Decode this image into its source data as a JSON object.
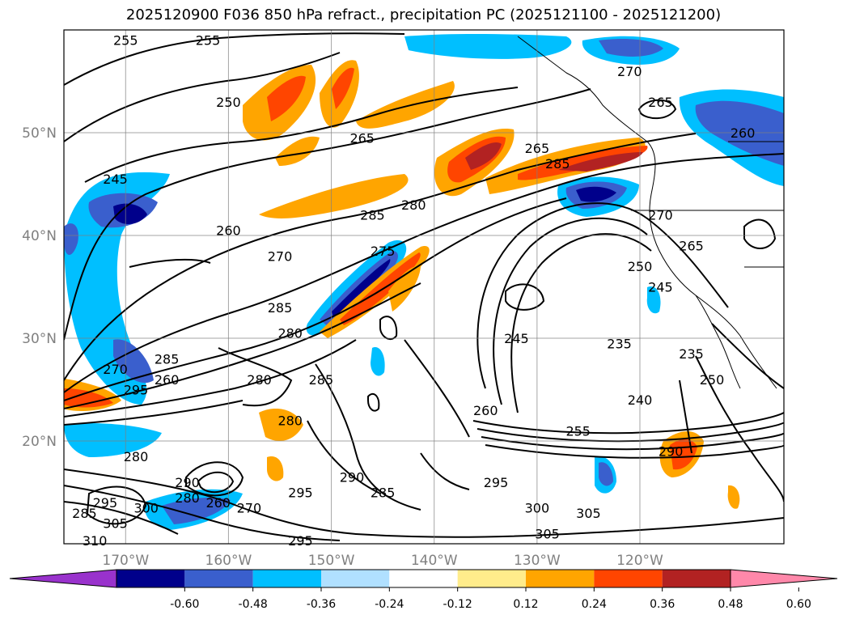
{
  "chart_data": {
    "type": "map",
    "title": "2025120900 F036 850 hPa refract., precipitation PC (2025121100 - 2025121200)",
    "x_axis": {
      "ticks": [
        {
          "lon": -170,
          "label": "170°W"
        },
        {
          "lon": -160,
          "label": "160°W"
        },
        {
          "lon": -150,
          "label": "150°W"
        },
        {
          "lon": -140,
          "label": "140°W"
        },
        {
          "lon": -130,
          "label": "130°W"
        },
        {
          "lon": -120,
          "label": "120°W"
        }
      ]
    },
    "y_axis": {
      "ticks": [
        {
          "lat": 50,
          "label": "50°N"
        },
        {
          "lat": 40,
          "label": "40°N"
        },
        {
          "lat": 30,
          "label": "30°N"
        },
        {
          "lat": 20,
          "label": "20°N"
        }
      ]
    },
    "extent": {
      "lon": [
        -176,
        -106
      ],
      "lat": [
        10,
        60
      ]
    },
    "colorbar": {
      "levels": [
        "-0.60",
        "-0.48",
        "-0.36",
        "-0.24",
        "-0.12",
        "0.12",
        "0.24",
        "0.36",
        "0.48",
        "0.60"
      ],
      "colors": [
        "#9932cc",
        "#00008b",
        "#3a5fcd",
        "#00bfff",
        "#b0e0ff",
        "#ffffff",
        "#ffec8b",
        "#ffa500",
        "#ff4500",
        "#b22222",
        "#ff88aa"
      ],
      "extend": "both"
    },
    "contour_labels": [
      {
        "text": "255",
        "lon": -170,
        "lat": 59
      },
      {
        "text": "255",
        "lon": -162,
        "lat": 59
      },
      {
        "text": "250",
        "lon": -160,
        "lat": 53
      },
      {
        "text": "265",
        "lon": -147,
        "lat": 49.5
      },
      {
        "text": "245",
        "lon": -171,
        "lat": 45.5
      },
      {
        "text": "260",
        "lon": -160,
        "lat": 40.5
      },
      {
        "text": "270",
        "lon": -155,
        "lat": 38
      },
      {
        "text": "285",
        "lon": -146,
        "lat": 42
      },
      {
        "text": "280",
        "lon": -142,
        "lat": 43
      },
      {
        "text": "275",
        "lon": -145,
        "lat": 38.5
      },
      {
        "text": "285",
        "lon": -155,
        "lat": 33
      },
      {
        "text": "280",
        "lon": -154,
        "lat": 30.5
      },
      {
        "text": "285",
        "lon": -151,
        "lat": 26
      },
      {
        "text": "280",
        "lon": -157,
        "lat": 26
      },
      {
        "text": "280",
        "lon": -154,
        "lat": 22
      },
      {
        "text": "265",
        "lon": -130,
        "lat": 48.5
      },
      {
        "text": "285",
        "lon": -128,
        "lat": 47
      },
      {
        "text": "270",
        "lon": -121,
        "lat": 56
      },
      {
        "text": "265",
        "lon": -118,
        "lat": 53
      },
      {
        "text": "260",
        "lon": -110,
        "lat": 50
      },
      {
        "text": "270",
        "lon": -118,
        "lat": 42
      },
      {
        "text": "265",
        "lon": -115,
        "lat": 39
      },
      {
        "text": "250",
        "lon": -120,
        "lat": 37
      },
      {
        "text": "245",
        "lon": -118,
        "lat": 35
      },
      {
        "text": "245",
        "lon": -132,
        "lat": 30
      },
      {
        "text": "235",
        "lon": -122,
        "lat": 29.5
      },
      {
        "text": "235",
        "lon": -115,
        "lat": 28.5
      },
      {
        "text": "250",
        "lon": -113,
        "lat": 26
      },
      {
        "text": "240",
        "lon": -120,
        "lat": 24
      },
      {
        "text": "260",
        "lon": -135,
        "lat": 23
      },
      {
        "text": "255",
        "lon": -126,
        "lat": 21
      },
      {
        "text": "290",
        "lon": -117,
        "lat": 19
      },
      {
        "text": "295",
        "lon": -134,
        "lat": 16
      },
      {
        "text": "300",
        "lon": -130,
        "lat": 13.5
      },
      {
        "text": "305",
        "lon": -125,
        "lat": 13
      },
      {
        "text": "305",
        "lon": -129,
        "lat": 11
      },
      {
        "text": "285",
        "lon": -145,
        "lat": 15
      },
      {
        "text": "290",
        "lon": -148,
        "lat": 16.5
      },
      {
        "text": "295",
        "lon": -153,
        "lat": 15
      },
      {
        "text": "295",
        "lon": -153,
        "lat": 10.3
      },
      {
        "text": "270",
        "lon": -171,
        "lat": 27
      },
      {
        "text": "260",
        "lon": -166,
        "lat": 26
      },
      {
        "text": "295",
        "lon": -169,
        "lat": 25
      },
      {
        "text": "285",
        "lon": -166,
        "lat": 28
      },
      {
        "text": "280",
        "lon": -169,
        "lat": 18.5
      },
      {
        "text": "290",
        "lon": -164,
        "lat": 16
      },
      {
        "text": "280",
        "lon": -164,
        "lat": 14.5
      },
      {
        "text": "260",
        "lon": -161,
        "lat": 14
      },
      {
        "text": "270",
        "lon": -158,
        "lat": 13.5
      },
      {
        "text": "300",
        "lon": -168,
        "lat": 13.5
      },
      {
        "text": "305",
        "lon": -171,
        "lat": 12
      },
      {
        "text": "310",
        "lon": -173,
        "lat": 10.3
      },
      {
        "text": "285",
        "lon": -174,
        "lat": 13
      },
      {
        "text": "295",
        "lon": -172,
        "lat": 14
      }
    ]
  }
}
